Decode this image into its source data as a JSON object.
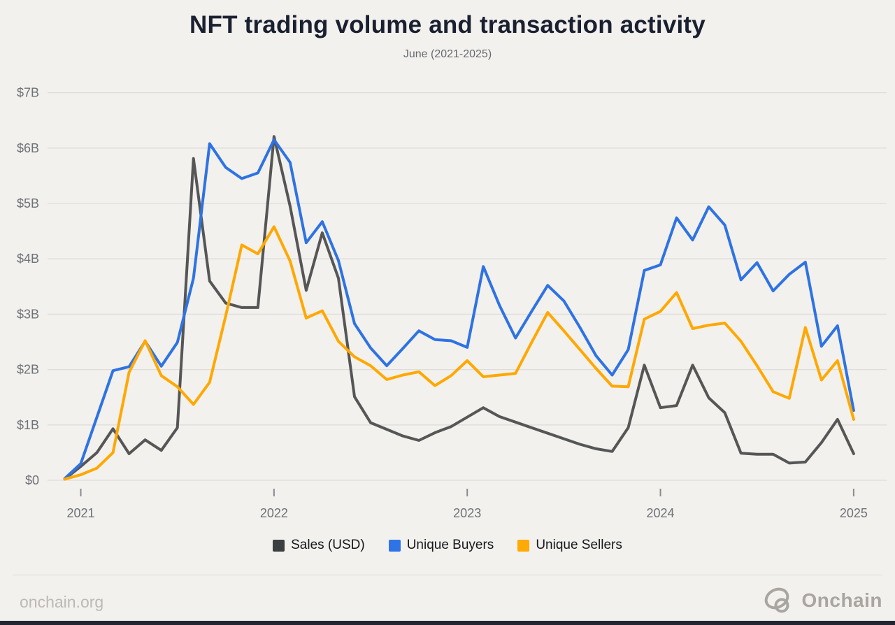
{
  "title": "NFT trading volume and transaction activity",
  "subtitle": "June (2021-2025)",
  "footer": {
    "site": "onchain.org",
    "brand": "Onchain"
  },
  "colors": {
    "background": "#f2f1ee",
    "gridline": "#dfddda",
    "axis_label": "#6e7177",
    "tick": "#888b90",
    "title": "#1a2030",
    "subtitle": "#67696e",
    "legend_text": "#16171a",
    "footer_text": "#bcb9b6",
    "brand_gray": "#a9a5a1",
    "bottom_bar": "#232531"
  },
  "chart_data": {
    "type": "line",
    "title": "NFT trading volume and transaction activity",
    "subtitle": "June (2021-2025)",
    "xlabel": "",
    "ylabel": "",
    "ylim": [
      0,
      7
    ],
    "grid": true,
    "legend_position": "bottom",
    "y_ticks": [
      {
        "value": 0,
        "label": "$0"
      },
      {
        "value": 1,
        "label": "$1B"
      },
      {
        "value": 2,
        "label": "$2B"
      },
      {
        "value": 3,
        "label": "$3B"
      },
      {
        "value": 4,
        "label": "$4B"
      },
      {
        "value": 5,
        "label": "$5B"
      },
      {
        "value": 6,
        "label": "$6B"
      },
      {
        "value": 7,
        "label": "$7B"
      }
    ],
    "x_ticks": [
      {
        "month_index": 1,
        "label": "2021"
      },
      {
        "month_index": 13,
        "label": "2022"
      },
      {
        "month_index": 25,
        "label": "2023"
      },
      {
        "month_index": 37,
        "label": "2024"
      },
      {
        "month_index": 49,
        "label": "2025"
      }
    ],
    "months": [
      "2021-05",
      "2021-06",
      "2021-07",
      "2021-08",
      "2021-09",
      "2021-10",
      "2021-11",
      "2021-12",
      "2022-01",
      "2022-02",
      "2022-03",
      "2022-04",
      "2022-05",
      "2022-06",
      "2022-07",
      "2022-08",
      "2022-09",
      "2022-10",
      "2022-11",
      "2022-12",
      "2023-01",
      "2023-02",
      "2023-03",
      "2023-04",
      "2023-05",
      "2023-06",
      "2023-07",
      "2023-08",
      "2023-09",
      "2023-10",
      "2023-11",
      "2023-12",
      "2024-01",
      "2024-02",
      "2024-03",
      "2024-04",
      "2024-05",
      "2024-06",
      "2024-07",
      "2024-08",
      "2024-09",
      "2024-10",
      "2024-11",
      "2024-12",
      "2025-01",
      "2025-02",
      "2025-03",
      "2025-04",
      "2025-05",
      "2025-06"
    ],
    "series": [
      {
        "name": "Sales (USD)",
        "color": "#565656",
        "swatch": "#3c3f40",
        "values": [
          0.02,
          0.25,
          0.5,
          0.93,
          0.48,
          0.73,
          0.54,
          0.95,
          5.81,
          3.6,
          3.2,
          3.12,
          3.12,
          6.21,
          4.95,
          3.43,
          4.47,
          3.65,
          1.51,
          1.04,
          0.92,
          0.8,
          0.72,
          0.86,
          0.97,
          1.14,
          1.31,
          1.15,
          1.05,
          0.95,
          0.85,
          0.75,
          0.65,
          0.57,
          0.52,
          0.95,
          2.08,
          1.31,
          1.35,
          2.08,
          1.49,
          1.22,
          0.49,
          0.47,
          0.47,
          0.31,
          0.33,
          0.68,
          1.1,
          0.48
        ]
      },
      {
        "name": "Unique Buyers",
        "color": "#2f73e2",
        "swatch": "#2e74e6",
        "values": [
          0.03,
          0.3,
          1.14,
          1.98,
          2.05,
          2.51,
          2.06,
          2.49,
          3.65,
          6.08,
          5.65,
          5.45,
          5.55,
          6.15,
          5.74,
          4.29,
          4.67,
          3.97,
          2.83,
          2.39,
          2.07,
          2.38,
          2.7,
          2.54,
          2.52,
          2.4,
          3.86,
          3.16,
          2.57,
          3.05,
          3.52,
          3.24,
          2.76,
          2.25,
          1.9,
          2.36,
          3.79,
          3.89,
          4.74,
          4.34,
          4.94,
          4.61,
          3.62,
          3.93,
          3.42,
          3.72,
          3.94,
          2.42,
          2.79,
          1.26
        ]
      },
      {
        "name": "Unique Sellers",
        "color": "#ffa800",
        "swatch": "#ffaa05",
        "values": [
          0.02,
          0.1,
          0.22,
          0.5,
          1.95,
          2.52,
          1.89,
          1.69,
          1.37,
          1.77,
          2.97,
          4.25,
          4.09,
          4.58,
          3.96,
          2.93,
          3.06,
          2.51,
          2.23,
          2.07,
          1.82,
          1.9,
          1.96,
          1.71,
          1.89,
          2.16,
          1.87,
          1.9,
          1.93,
          2.49,
          3.03,
          2.7,
          2.36,
          2.02,
          1.7,
          1.69,
          2.91,
          3.05,
          3.39,
          2.74,
          2.8,
          2.84,
          2.51,
          2.07,
          1.6,
          1.48,
          2.76,
          1.81,
          2.16,
          1.1
        ]
      }
    ]
  }
}
